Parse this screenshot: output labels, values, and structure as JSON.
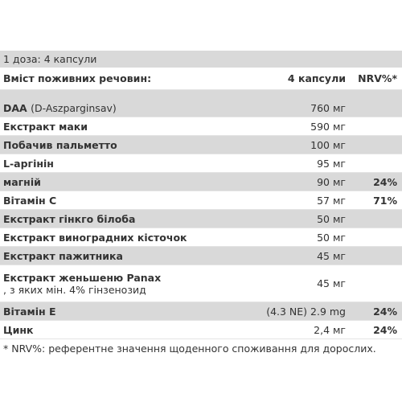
{
  "dose": "1 доза: 4 капсули",
  "header": {
    "name": "Вміст поживних речовин:",
    "amount": "4 капсули",
    "nrv": "NRV%*"
  },
  "rows": [
    {
      "name": "DAA",
      "note": "(D-Aszparginsav)",
      "amount": "760 мг"
    },
    {
      "name": "Екстракт маки",
      "amount": "590 мг"
    },
    {
      "name": "Побачив пальметто",
      "amount": "100 мг"
    },
    {
      "name": "L-аргінін",
      "amount": "95 мг"
    },
    {
      "name": "магній",
      "amount": "90 мг",
      "nrv": "24%"
    },
    {
      "name": "Вітамін C",
      "amount": "57 мг",
      "nrv": "71%"
    },
    {
      "name": "Екстракт гінкго білоба",
      "amount": "50 мг"
    },
    {
      "name": "Екстракт виноградних кісточок",
      "amount": "50 мг"
    },
    {
      "name": "Екстракт пажитника",
      "amount": "45 мг"
    },
    {
      "name": "Екстракт женьшеню Panax",
      "note": ", з яких мін. 4% гінзенозид",
      "amount": "45 мг"
    },
    {
      "name": "Вітамін E",
      "amount": "(4.3 NE) 2.9 mg",
      "nrv": "24%"
    },
    {
      "name": "Цинк",
      "amount": "2,4 мг",
      "nrv": "24%"
    }
  ],
  "footnote": "* NRV%: референтне значення щоденного споживання для дорослих."
}
